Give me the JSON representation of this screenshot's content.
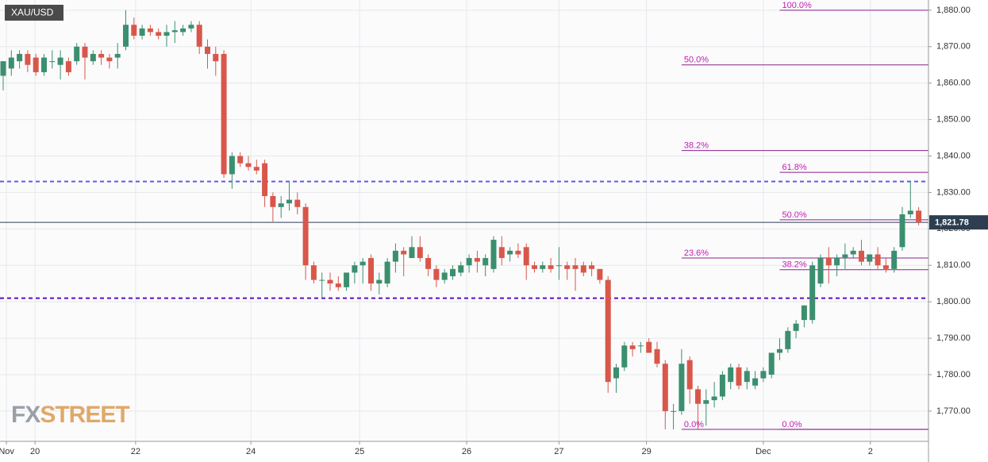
{
  "chart_data": {
    "type": "candlestick",
    "symbol": "XAU/USD",
    "watermark": [
      "FX",
      "STREET"
    ],
    "up_color": "#3b8f6e",
    "down_color": "#d8574a",
    "open": [
      1862,
      1864,
      1866,
      1868,
      1867,
      1863,
      1866,
      1865,
      1866,
      1866,
      1870,
      1866,
      1868,
      1867,
      1867,
      1870,
      1876,
      1873,
      1875,
      1874,
      1873,
      1874,
      1874,
      1875,
      1876,
      1870,
      1868,
      1868,
      1835,
      1840,
      1838,
      1837,
      1838,
      1829,
      1826,
      1827,
      1828,
      1826,
      1810,
      1806,
      1806,
      1805,
      1804,
      1808,
      1810,
      1812,
      1805,
      1805,
      1811,
      1814,
      1812,
      1815,
      1812,
      1809,
      1806,
      1807,
      1808,
      1810,
      1812,
      1810,
      1809,
      1815,
      1813,
      1814,
      1815,
      1810,
      1809,
      1810,
      1810,
      1810,
      1810,
      1810,
      1810,
      1809,
      1806,
      1779,
      1782,
      1788,
      1788,
      1789,
      1787,
      1783,
      1770,
      1770,
      1784,
      1776,
      1772,
      1773,
      1774,
      1778,
      1782,
      1778,
      1777,
      1779,
      1780,
      1786,
      1787,
      1792,
      1795,
      1795,
      1805,
      1812,
      1810,
      1812,
      1813,
      1814,
      1811,
      1813,
      1810,
      1809,
      1815,
      1824,
      1825
    ],
    "high": [
      1866,
      1869,
      1869,
      1869,
      1868,
      1868,
      1869,
      1869,
      1867,
      1871,
      1871,
      1869,
      1869,
      1868,
      1871,
      1880,
      1878,
      1876,
      1876,
      1875,
      1876,
      1877,
      1876,
      1877,
      1877,
      1872,
      1870,
      1869,
      1841,
      1841,
      1840,
      1839,
      1839,
      1830,
      1829,
      1833,
      1830,
      1827,
      1811,
      1808,
      1808,
      1807,
      1808,
      1811,
      1812,
      1813,
      1808,
      1812,
      1816,
      1815,
      1818,
      1818,
      1813,
      1810,
      1809,
      1810,
      1811,
      1813,
      1814,
      1813,
      1818,
      1818,
      1815,
      1816,
      1816,
      1811,
      1811,
      1812,
      1815,
      1811,
      1812,
      1811,
      1811,
      1809,
      1807,
      1783,
      1789,
      1789,
      1789,
      1790,
      1789,
      1784,
      1772,
      1787,
      1785,
      1777,
      1776,
      1778,
      1781,
      1783,
      1783,
      1782,
      1781,
      1782,
      1786,
      1790,
      1793,
      1795,
      1799,
      1811,
      1813,
      1815,
      1813,
      1816,
      1815,
      1817,
      1813,
      1815,
      1812,
      1815,
      1826,
      1833,
      1826
    ],
    "low": [
      1858,
      1862,
      1864,
      1863,
      1862,
      1862,
      1864,
      1861,
      1862,
      1865,
      1861,
      1865,
      1865,
      1864,
      1864,
      1869,
      1872,
      1872,
      1873,
      1872,
      1870,
      1871,
      1873,
      1874,
      1868,
      1864,
      1862,
      1834,
      1831,
      1837,
      1836,
      1835,
      1826,
      1822,
      1823,
      1825,
      1824,
      1806,
      1805,
      1801,
      1803,
      1803,
      1803,
      1805,
      1805,
      1803,
      1802,
      1804,
      1808,
      1807,
      1812,
      1811,
      1807,
      1804,
      1805,
      1806,
      1807,
      1808,
      1808,
      1807,
      1808,
      1810,
      1811,
      1812,
      1806,
      1808,
      1808,
      1808,
      1806,
      1806,
      1803,
      1807,
      1807,
      1805,
      1775,
      1775,
      1781,
      1785,
      1786,
      1786,
      1782,
      1765,
      1765,
      1769,
      1772,
      1765,
      1766,
      1771,
      1773,
      1776,
      1776,
      1776,
      1776,
      1778,
      1779,
      1784,
      1786,
      1790,
      1793,
      1794,
      1804,
      1805,
      1807,
      1809,
      1812,
      1810,
      1810,
      1809,
      1808,
      1808,
      1814,
      1823,
      1821
    ],
    "close": [
      1866,
      1867,
      1868,
      1865,
      1863,
      1867,
      1866,
      1867,
      1863,
      1870,
      1867,
      1868,
      1867,
      1866,
      1868,
      1876,
      1873,
      1875,
      1874,
      1873,
      1874,
      1874.5,
      1875,
      1876,
      1870,
      1868,
      1866,
      1835,
      1840,
      1838,
      1837,
      1836,
      1829,
      1826,
      1827,
      1828,
      1826,
      1810,
      1806,
      1806,
      1805,
      1804,
      1808,
      1810,
      1811,
      1805,
      1806,
      1811,
      1814,
      1813,
      1815,
      1812,
      1809,
      1806,
      1808,
      1809,
      1810,
      1812,
      1811,
      1812,
      1817,
      1812,
      1814,
      1813,
      1810,
      1809,
      1810,
      1809,
      1810,
      1809,
      1809,
      1808,
      1809,
      1806,
      1778,
      1782,
      1788,
      1787,
      1788,
      1786,
      1783,
      1770,
      1770,
      1783,
      1776,
      1772,
      1773,
      1774,
      1780,
      1782,
      1777,
      1781,
      1779,
      1781,
      1786,
      1787,
      1792,
      1794,
      1799,
      1810,
      1812,
      1810,
      1812,
      1813,
      1814,
      1811,
      1813,
      1810,
      1809,
      1814,
      1824,
      1825,
      1821.78
    ],
    "x_labels": [
      {
        "value": 0.4,
        "label": "Nov"
      },
      {
        "value": 3.9,
        "label": "20"
      },
      {
        "value": 16.2,
        "label": "22"
      },
      {
        "value": 30.3,
        "label": "24"
      },
      {
        "value": 43.6,
        "label": "25"
      },
      {
        "value": 56.7,
        "label": "26"
      },
      {
        "value": 68,
        "label": "27"
      },
      {
        "value": 78.7,
        "label": "29"
      },
      {
        "value": 93,
        "label": "Dec"
      },
      {
        "value": 106.1,
        "label": "2"
      }
    ],
    "ylim": [
      1761.7,
      1882.8
    ],
    "yticks": [
      {
        "value": 1770,
        "label": "1,770.00"
      },
      {
        "value": 1780,
        "label": "1,780.00"
      },
      {
        "value": 1790,
        "label": "1,790.00"
      },
      {
        "value": 1800,
        "label": "1,800.00"
      },
      {
        "value": 1810,
        "label": "1,810.00"
      },
      {
        "value": 1820,
        "label": "1,820.00"
      },
      {
        "value": 1830,
        "label": "1,830.00"
      },
      {
        "value": 1840,
        "label": "1,840.00"
      },
      {
        "value": 1850,
        "label": "1,850.00"
      },
      {
        "value": 1860,
        "label": "1,860.00"
      },
      {
        "value": 1870,
        "label": "1,870.00"
      },
      {
        "value": 1880,
        "label": "1,880.00"
      }
    ],
    "grid": true,
    "last_price": {
      "value": 1821.78,
      "label": "1,821.78"
    },
    "hlines": [
      {
        "value": 1833,
        "color": "#5b5bf0"
      },
      {
        "value": 1801,
        "color": "#5a10c8"
      }
    ],
    "fibonacci": [
      {
        "start_index": 83,
        "levels": [
          {
            "value": 1865,
            "label": "50.0%"
          },
          {
            "value": 1841.5,
            "label": "38.2%"
          },
          {
            "value": 1812,
            "label": "23.6%"
          },
          {
            "value": 1765,
            "label": "0.0%"
          }
        ]
      },
      {
        "start_index": 95,
        "levels": [
          {
            "value": 1880,
            "label": "100.0%"
          },
          {
            "value": 1835.5,
            "label": "61.8%"
          },
          {
            "value": 1822.5,
            "label": "50.0%"
          },
          {
            "value": 1808.8,
            "label": "38.2%"
          },
          {
            "value": 1765,
            "label": "0.0%"
          }
        ]
      }
    ]
  }
}
